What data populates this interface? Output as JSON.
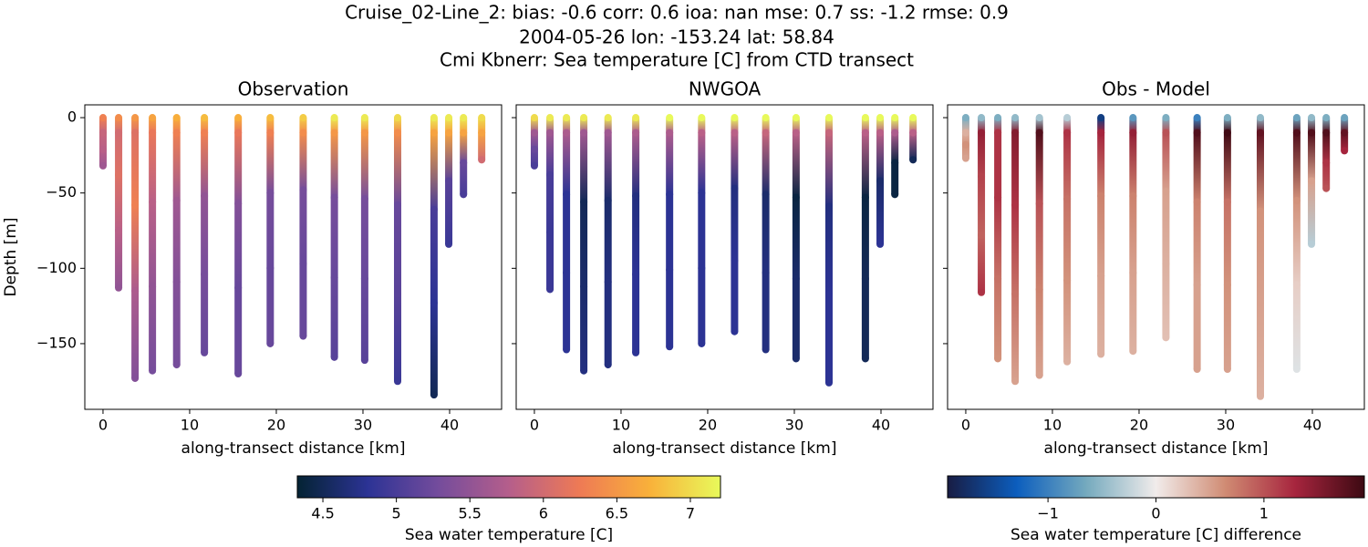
{
  "title_lines": [
    "Cruise_02-Line_2: bias: -0.6  corr: 0.6  ioa: nan  mse: 0.7  ss: -1.2  rmse: 0.9",
    "2004-05-26 lon: -153.24 lat: 58.84",
    "Cmi Kbnerr: Sea temperature [C] from CTD transect"
  ],
  "chart_data": [
    {
      "type": "scatter",
      "title": "Observation",
      "xlabel": "along-transect distance [km]",
      "ylabel": "Depth [m]",
      "xlim": [
        -2.1,
        46
      ],
      "ylim": [
        -193.6,
        8.5
      ],
      "xticks": [
        0,
        10,
        20,
        30,
        40
      ],
      "yticks": [
        0,
        {
          "value": -50,
          "label": "−50"
        },
        {
          "value": -100,
          "label": "−100"
        },
        {
          "value": -150,
          "label": "−150"
        }
      ],
      "clim": [
        4.326,
        7.205
      ],
      "cmap": [
        "#042333",
        "#2c3395",
        "#744c9c",
        "#b55e8b",
        "#ee7a55",
        "#f9b13a",
        "#e8fa5b"
      ],
      "colorbar": {
        "label": "Sea water temperature [C]",
        "ticks": [
          4.5,
          5.0,
          5.5,
          6.0,
          6.5,
          7.0
        ]
      },
      "x": [
        0,
        1.8,
        3.7,
        5.7,
        8.5,
        11.7,
        15.6,
        19.3,
        23.1,
        26.7,
        30.2,
        34,
        38.2,
        39.9,
        41.6,
        43.7
      ],
      "depth": [
        [
          0,
          -10,
          -21,
          -32
        ],
        [
          0,
          -10,
          -38,
          -75,
          -113
        ],
        [
          0,
          -10,
          -58,
          -115,
          -173
        ],
        [
          0,
          -10,
          -56,
          -112,
          -168
        ],
        [
          0,
          -10,
          -55,
          -109,
          -164
        ],
        [
          0,
          -10,
          -52,
          -104,
          -156
        ],
        [
          0,
          -10,
          -57,
          -113,
          -170
        ],
        [
          0,
          -10,
          -50,
          -100,
          -150
        ],
        [
          0,
          -10,
          -48,
          -97,
          -145
        ],
        [
          0,
          -10,
          -53,
          -106,
          -159
        ],
        [
          0,
          -10,
          -54,
          -107,
          -161
        ],
        [
          0,
          -10,
          -58,
          -117,
          -175
        ],
        [
          0,
          -10,
          -61,
          -123,
          -184
        ],
        [
          0,
          -10,
          -42,
          -84
        ],
        [
          0,
          -10,
          -30,
          -51
        ],
        [
          0,
          -10,
          -28
        ]
      ],
      "values": [
        [
          6.3,
          5.9,
          5.8,
          5.6
        ],
        [
          6.4,
          6.0,
          6.1,
          5.8,
          5.5
        ],
        [
          6.5,
          6.1,
          6.3,
          5.7,
          5.4
        ],
        [
          6.6,
          6.2,
          5.8,
          5.5,
          5.3
        ],
        [
          6.7,
          6.3,
          5.6,
          5.4,
          5.3
        ],
        [
          6.8,
          6.3,
          5.5,
          5.3,
          5.2
        ],
        [
          6.7,
          6.2,
          5.4,
          5.2,
          5.2
        ],
        [
          6.8,
          6.3,
          5.3,
          5.2,
          5.2
        ],
        [
          6.9,
          6.4,
          5.3,
          5.2,
          5.2
        ],
        [
          7.1,
          6.5,
          5.3,
          5.2,
          5.1
        ],
        [
          7.1,
          6.5,
          5.3,
          5.2,
          5.1
        ],
        [
          7.0,
          6.4,
          5.2,
          5.1,
          4.9
        ],
        [
          7.1,
          6.6,
          5.0,
          4.8,
          4.5
        ],
        [
          7.1,
          6.6,
          5.1,
          4.9
        ],
        [
          7.1,
          6.6,
          5.2,
          5.0
        ],
        [
          7.0,
          6.6,
          6.0
        ]
      ]
    },
    {
      "type": "scatter",
      "title": "NWGOA",
      "xlabel": "along-transect distance [km]",
      "xlim": [
        -2.1,
        46
      ],
      "ylim": [
        -193.6,
        8.5
      ],
      "xticks": [
        0,
        10,
        20,
        30,
        40
      ],
      "yticks": [
        0,
        -50,
        -100,
        -150
      ],
      "clim": [
        4.326,
        7.205
      ],
      "cmap": [
        "#042333",
        "#2c3395",
        "#744c9c",
        "#b55e8b",
        "#ee7a55",
        "#f9b13a",
        "#e8fa5b"
      ],
      "x": [
        0,
        1.8,
        3.7,
        5.7,
        8.5,
        11.7,
        15.6,
        19.3,
        23.1,
        26.7,
        30.2,
        34,
        38.2,
        39.9,
        41.6,
        43.7
      ],
      "depth": [
        [
          0,
          -10,
          -21,
          -32
        ],
        [
          0,
          -10,
          -38,
          -76,
          -114
        ],
        [
          0,
          -10,
          -51,
          -103,
          -154
        ],
        [
          0,
          -10,
          -56,
          -112,
          -168
        ],
        [
          0,
          -10,
          -55,
          -109,
          -164
        ],
        [
          0,
          -10,
          -52,
          -104,
          -156
        ],
        [
          0,
          -10,
          -51,
          -101,
          -152
        ],
        [
          0,
          -10,
          -50,
          -100,
          -150
        ],
        [
          0,
          -10,
          -47,
          -95,
          -142
        ],
        [
          0,
          -10,
          -51,
          -103,
          -154
        ],
        [
          0,
          -10,
          -53,
          -107,
          -160
        ],
        [
          0,
          -10,
          -59,
          -117,
          -176
        ],
        [
          0,
          -10,
          -53,
          -107,
          -160
        ],
        [
          0,
          -10,
          -42,
          -84
        ],
        [
          0,
          -10,
          -30,
          -51
        ],
        [
          0,
          -10,
          -28
        ]
      ],
      "values": [
        [
          7.0,
          5.6,
          5.2,
          5.0
        ],
        [
          7.1,
          5.6,
          5.0,
          4.9,
          4.9
        ],
        [
          7.1,
          5.7,
          4.8,
          4.8,
          4.8
        ],
        [
          7.1,
          5.6,
          4.5,
          4.6,
          4.7
        ],
        [
          7.1,
          5.6,
          4.6,
          4.7,
          4.7
        ],
        [
          7.1,
          5.7,
          4.7,
          4.8,
          4.8
        ],
        [
          7.2,
          5.7,
          4.8,
          4.8,
          4.8
        ],
        [
          7.2,
          5.8,
          4.8,
          4.8,
          4.8
        ],
        [
          7.2,
          5.8,
          4.7,
          4.8,
          4.8
        ],
        [
          7.2,
          5.9,
          4.6,
          4.7,
          4.7
        ],
        [
          7.2,
          5.8,
          4.4,
          4.6,
          4.6
        ],
        [
          7.2,
          5.9,
          4.7,
          4.8,
          4.8
        ],
        [
          7.2,
          5.8,
          4.4,
          4.5,
          4.5
        ],
        [
          7.2,
          5.8,
          4.6,
          4.8
        ],
        [
          7.2,
          5.7,
          4.4,
          4.4
        ],
        [
          7.2,
          5.8,
          4.5
        ]
      ]
    },
    {
      "type": "scatter",
      "title": "Obs - Model",
      "xlabel": "along-transect distance [km]",
      "xlim": [
        -2.1,
        46
      ],
      "ylim": [
        -193.6,
        8.5
      ],
      "xticks": [
        0,
        10,
        20,
        30,
        40
      ],
      "yticks": [
        0,
        -50,
        -100,
        -150
      ],
      "clim": [
        -1.93,
        1.93
      ],
      "cmap": [
        "#181c43",
        "#0c5ebe",
        "#75aabe",
        "#f1eceb",
        "#d08b73",
        "#a7253e",
        "#3c0912"
      ],
      "colorbar": {
        "label": "Sea water temperature [C] difference",
        "ticks": [
          {
            "value": -1,
            "label": "−1"
          },
          0,
          1
        ]
      },
      "x": [
        0,
        1.8,
        3.7,
        5.7,
        8.5,
        11.7,
        15.6,
        19.3,
        23.1,
        26.7,
        30.2,
        34,
        38.2,
        39.9,
        41.6,
        43.7
      ],
      "depth": [
        [
          0,
          -10,
          -18,
          -27
        ],
        [
          0,
          -10,
          -39,
          -78,
          -116
        ],
        [
          0,
          -10,
          -53,
          -107,
          -160
        ],
        [
          0,
          -10,
          -58,
          -117,
          -175
        ],
        [
          0,
          -10,
          -57,
          -114,
          -171
        ],
        [
          0,
          -10,
          -54,
          -108,
          -162
        ],
        [
          0,
          -10,
          -52,
          -105,
          -157
        ],
        [
          0,
          -10,
          -52,
          -103,
          -155
        ],
        [
          0,
          -10,
          -49,
          -97,
          -146
        ],
        [
          0,
          -10,
          -56,
          -111,
          -167
        ],
        [
          0,
          -10,
          -56,
          -111,
          -167
        ],
        [
          0,
          -10,
          -62,
          -123,
          -185
        ],
        [
          0,
          -10,
          -55,
          -111,
          -167
        ],
        [
          0,
          -10,
          -42,
          -84
        ],
        [
          0,
          -10,
          -30,
          -47
        ],
        [
          0,
          -10,
          -22
        ]
      ],
      "values": [
        [
          -0.6,
          0.4,
          0.6,
          0.5
        ],
        [
          -0.5,
          1.4,
          1.1,
          0.9,
          1.2
        ],
        [
          -0.6,
          1.2,
          1.2,
          0.8,
          0.6
        ],
        [
          -0.5,
          1.5,
          1.2,
          0.8,
          0.5
        ],
        [
          -0.4,
          1.8,
          1.0,
          0.7,
          0.5
        ],
        [
          -0.3,
          1.2,
          0.8,
          0.6,
          0.4
        ],
        [
          -1.6,
          1.3,
          0.7,
          0.5,
          0.4
        ],
        [
          -0.8,
          1.4,
          0.7,
          0.5,
          0.4
        ],
        [
          -0.6,
          1.0,
          0.5,
          0.4,
          0.3
        ],
        [
          -1.0,
          1.8,
          0.7,
          0.5,
          0.5
        ],
        [
          -0.6,
          1.9,
          0.8,
          0.6,
          0.5
        ],
        [
          -0.5,
          1.7,
          0.6,
          0.5,
          0.4
        ],
        [
          -0.7,
          1.8,
          0.6,
          0.2,
          -0.1
        ],
        [
          -0.5,
          1.8,
          0.5,
          -0.3
        ],
        [
          -0.6,
          1.8,
          1.2,
          1.0
        ],
        [
          -0.7,
          1.7,
          1.3
        ]
      ]
    }
  ]
}
